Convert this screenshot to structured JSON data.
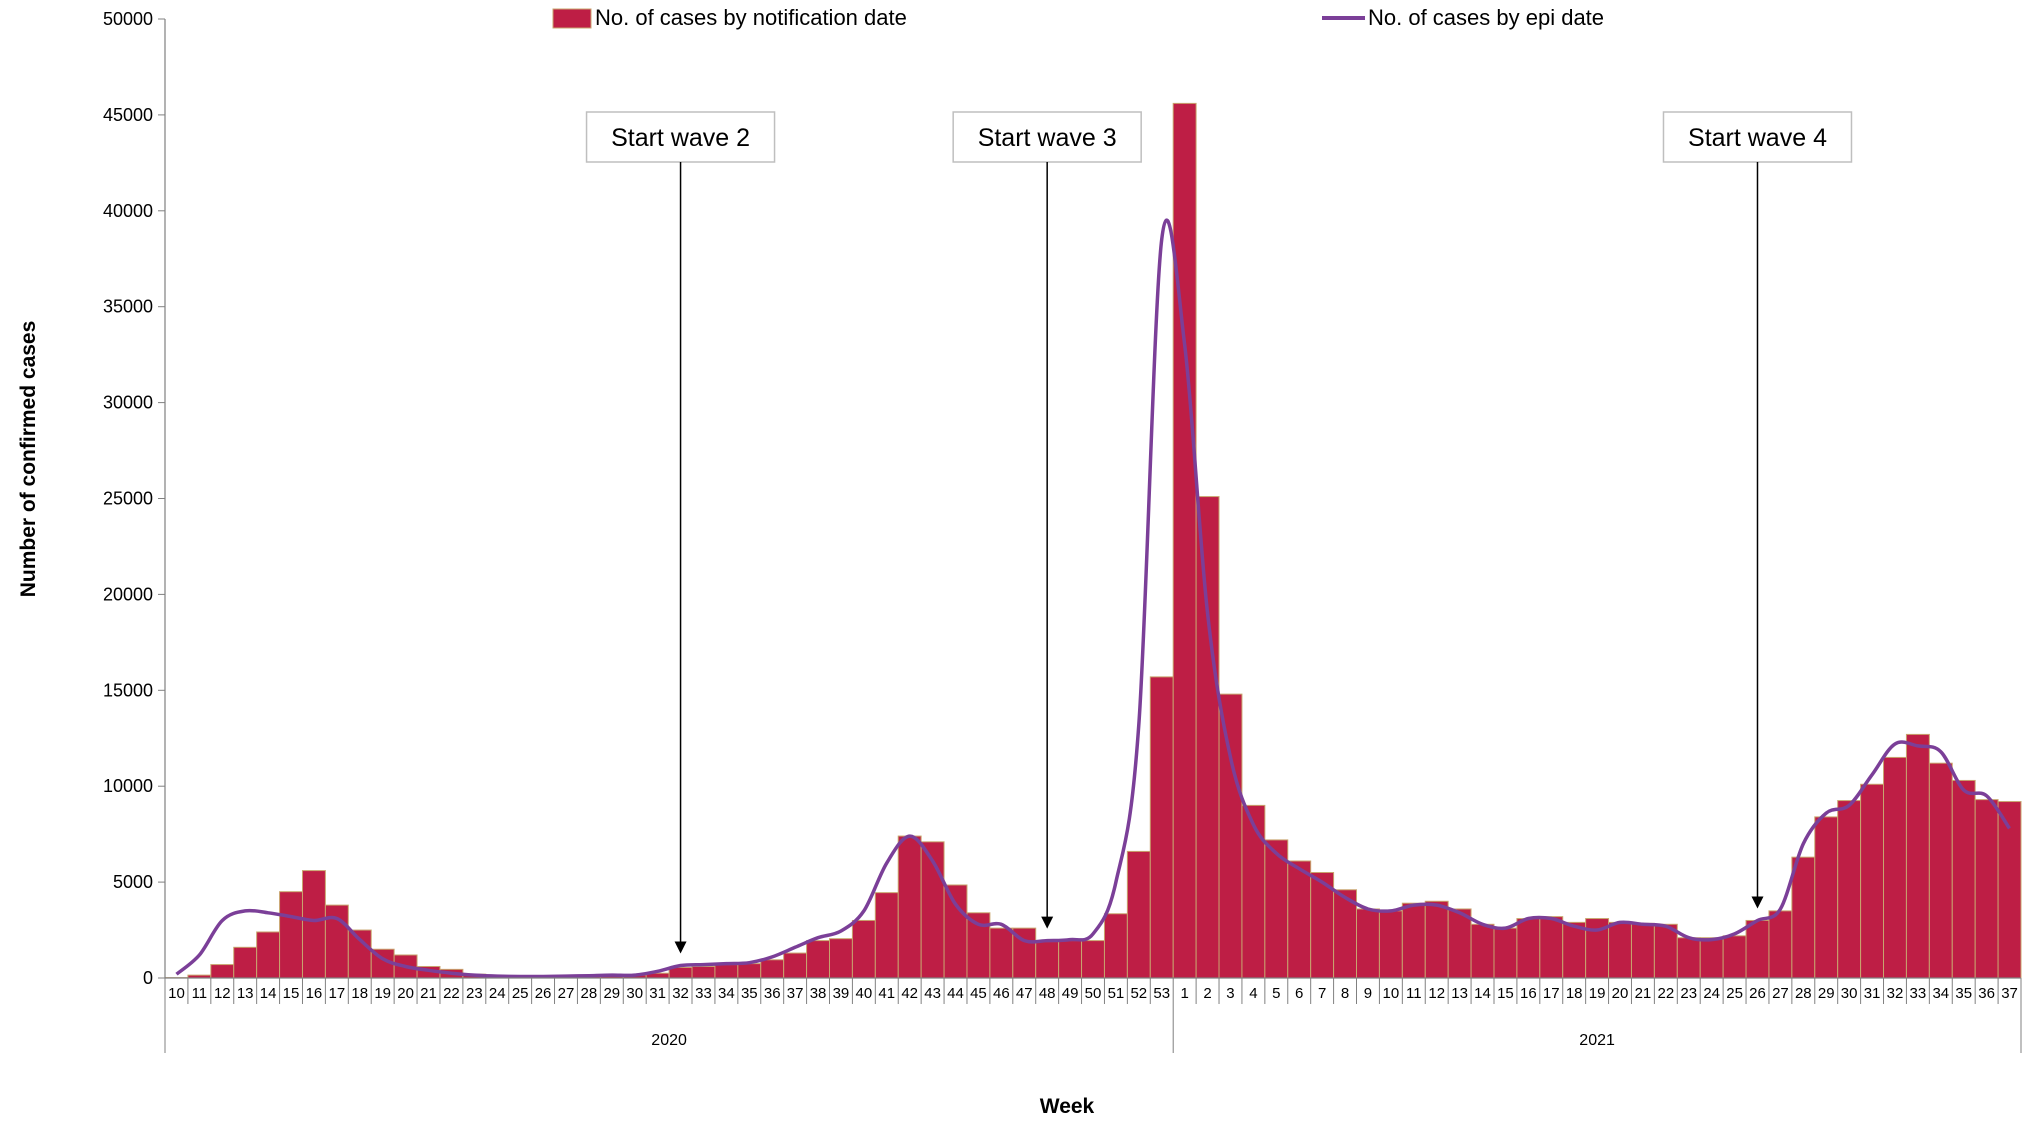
{
  "chart_data": {
    "type": "bar",
    "title": "",
    "xlabel": "Week",
    "ylabel": "Number of confirmed cases",
    "ylim": [
      0,
      50000
    ],
    "y_ticks": [
      0,
      5000,
      10000,
      15000,
      20000,
      25000,
      30000,
      35000,
      40000,
      45000,
      50000
    ],
    "grid": false,
    "legend_position": "top",
    "colors": {
      "bars": "#BE1E45",
      "bar_edge": "#C8A46E",
      "line": "#7B3F98"
    },
    "groups": [
      {
        "label": "2020",
        "weeks": [
          "10",
          "11",
          "12",
          "13",
          "14",
          "15",
          "16",
          "17",
          "18",
          "19",
          "20",
          "21",
          "22",
          "23",
          "24",
          "25",
          "26",
          "27",
          "28",
          "29",
          "30",
          "31",
          "32",
          "33",
          "34",
          "35",
          "36",
          "37",
          "38",
          "39",
          "40",
          "41",
          "42",
          "43",
          "44",
          "45",
          "46",
          "47",
          "48",
          "49",
          "50",
          "51",
          "52",
          "53"
        ]
      },
      {
        "label": "2021",
        "weeks": [
          "1",
          "2",
          "3",
          "4",
          "5",
          "6",
          "7",
          "8",
          "9",
          "10",
          "11",
          "12",
          "13",
          "14",
          "15",
          "16",
          "17",
          "18",
          "19",
          "20",
          "21",
          "22",
          "23",
          "24",
          "25",
          "26",
          "27",
          "28",
          "29",
          "30",
          "31",
          "32",
          "33",
          "34",
          "35",
          "36",
          "37"
        ]
      }
    ],
    "series": [
      {
        "name": "No. of cases by notification date",
        "type": "bar",
        "values": [
          20,
          150,
          700,
          1600,
          2400,
          4500,
          5600,
          3800,
          2500,
          1500,
          1200,
          600,
          450,
          200,
          100,
          80,
          100,
          100,
          150,
          150,
          150,
          250,
          550,
          600,
          700,
          750,
          950,
          1300,
          1950,
          2050,
          3000,
          4450,
          7400,
          7100,
          4850,
          3400,
          2600,
          2600,
          1900,
          1950,
          1950,
          3350,
          6600,
          15700,
          45600,
          25100,
          14800,
          9000,
          7200,
          6100,
          5500,
          4600,
          3600,
          3500,
          3900,
          4000,
          3600,
          2800,
          2600,
          3100,
          3200,
          2900,
          3100,
          2900,
          2850,
          2800,
          2100,
          2100,
          2200,
          3000,
          3500,
          6300,
          8400,
          9250,
          10100,
          11500,
          12700,
          11200,
          10300,
          9300,
          9200
        ]
      },
      {
        "name": "No. of cases by epi date",
        "type": "line",
        "values": [
          200,
          1200,
          3000,
          3500,
          3400,
          3200,
          3000,
          3100,
          2000,
          1000,
          600,
          400,
          250,
          150,
          100,
          80,
          80,
          100,
          120,
          150,
          150,
          350,
          650,
          700,
          750,
          800,
          1100,
          1600,
          2100,
          2450,
          3500,
          6000,
          7400,
          6100,
          3850,
          2800,
          2800,
          1950,
          1950,
          2000,
          2300,
          5000,
          13200,
          38500,
          33000,
          19000,
          11500,
          8000,
          6500,
          5700,
          5000,
          4200,
          3600,
          3500,
          3800,
          3800,
          3400,
          2800,
          2600,
          3100,
          3100,
          2700,
          2500,
          2900,
          2800,
          2700,
          2100,
          2000,
          2300,
          3000,
          3600,
          7000,
          8600,
          9000,
          10600,
          12200,
          12100,
          11800,
          9800,
          9500,
          7800
        ]
      }
    ],
    "annotations": [
      {
        "label": "Start wave 2",
        "year": "2020",
        "week": "32"
      },
      {
        "label": "Start wave 3",
        "year": "2020",
        "week": "48"
      },
      {
        "label": "Start wave 4",
        "year": "2021",
        "week": "26"
      }
    ]
  }
}
